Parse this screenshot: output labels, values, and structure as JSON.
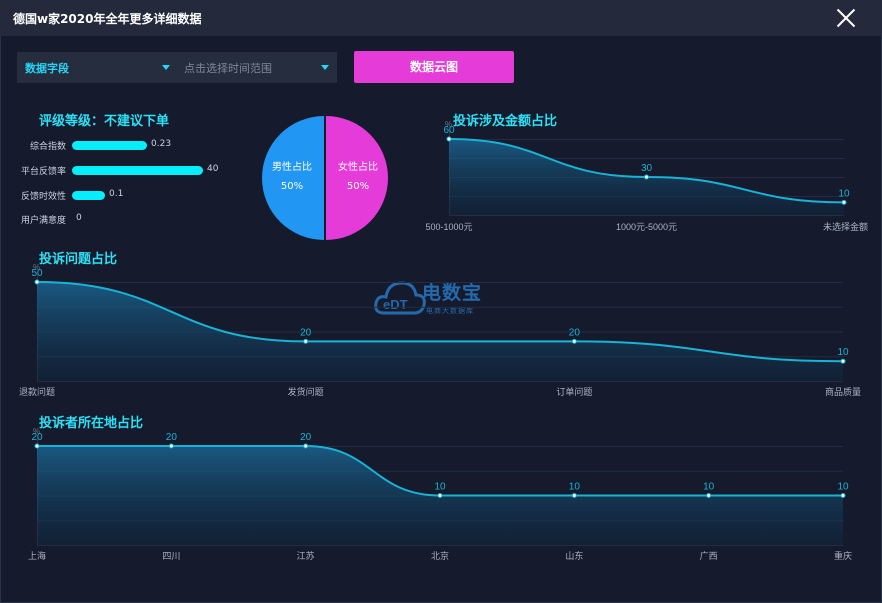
{
  "window": {
    "title": "德国w家2020年全年更多详细数据"
  },
  "filters": {
    "field_select": "数据字段",
    "time_select_placeholder": "点击选择时间范围",
    "cloud_button": "数据云图"
  },
  "rating": {
    "title": "评级等级：不建议下单",
    "items": [
      {
        "label": "综合指数",
        "value": "0.23",
        "fraction": 0.57
      },
      {
        "label": "平台反馈率",
        "value": "40",
        "fraction": 1.0
      },
      {
        "label": "反馈时效性",
        "value": "0.1",
        "fraction": 0.25
      },
      {
        "label": "用户满意度",
        "value": "0",
        "fraction": 0
      }
    ]
  },
  "gender_pie": {
    "male_label": "男性占比",
    "male_value": "50%",
    "female_label": "女性占比",
    "female_value": "50%",
    "male_color": "#2196f3",
    "female_color": "#e43bd9"
  },
  "watermark": {
    "name": "电数宝",
    "subtitle": "电商大数据库",
    "logo_text": "eDT"
  },
  "colors": {
    "accent": "#2de0f5",
    "line": "#19b3d5"
  },
  "chart_data": [
    {
      "type": "area",
      "title": "投诉涉及金额占比",
      "categories": [
        "500-1000元",
        "1000元-5000元",
        "未选择金额"
      ],
      "values": [
        60,
        30,
        10
      ],
      "value_labels": [
        "60",
        "30",
        "10"
      ],
      "unit": "%",
      "ylim": [
        0,
        60
      ],
      "grid": true
    },
    {
      "type": "area",
      "title": "投诉问题占比",
      "categories": [
        "退款问题",
        "发货问题",
        "订单问题",
        "商品质量"
      ],
      "values": [
        50,
        20,
        20,
        10
      ],
      "value_labels": [
        "50",
        "20",
        "20",
        "10"
      ],
      "unit": "%",
      "ylim": [
        0,
        50
      ],
      "grid": true
    },
    {
      "type": "area",
      "title": "投诉者所在地占比",
      "categories": [
        "上海",
        "四川",
        "江苏",
        "北京",
        "山东",
        "广西",
        "重庆"
      ],
      "values": [
        20,
        20,
        20,
        10,
        10,
        10,
        10
      ],
      "value_labels": [
        "20",
        "20",
        "20",
        "10",
        "10",
        "10",
        "10"
      ],
      "unit": "%",
      "ylim": [
        0,
        20
      ],
      "grid": true
    }
  ]
}
